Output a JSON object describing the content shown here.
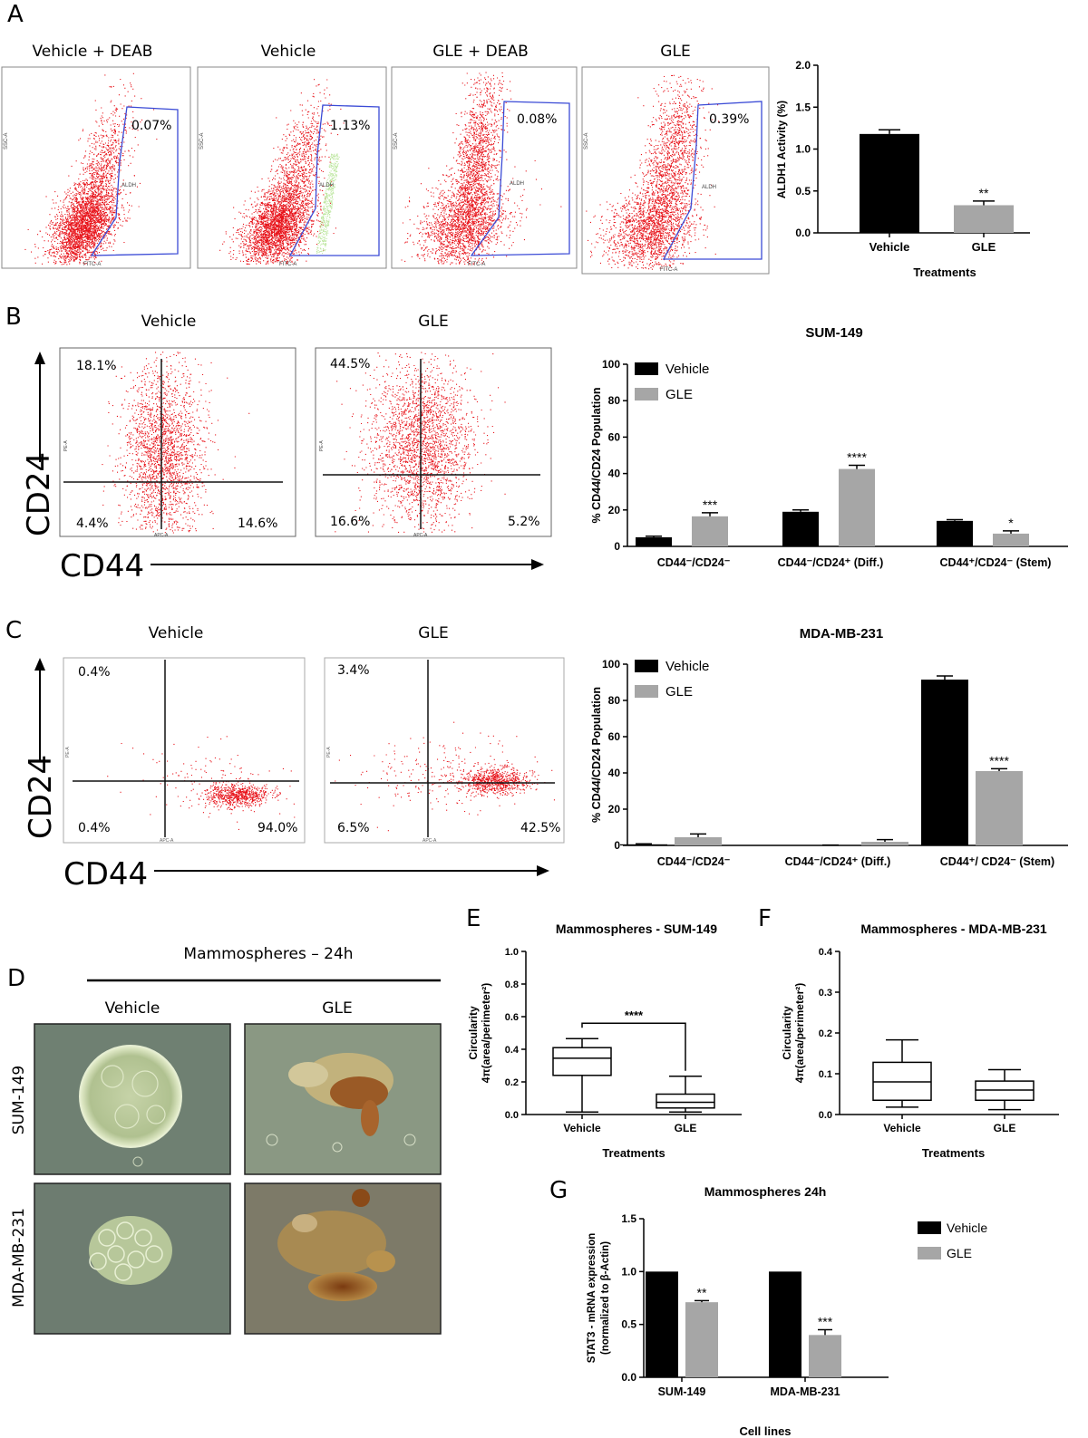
{
  "colors": {
    "vehicle": "#000000",
    "gle": "#a6a6a6",
    "dots": "#e8141b",
    "gate": "#3b4bd6",
    "gateDot": "#2c3ee0",
    "green": "#b9e59a"
  },
  "panel_letters": {
    "A": "A",
    "B": "B",
    "C": "C",
    "D": "D",
    "E": "E",
    "F": "F",
    "G": "G"
  },
  "panelA": {
    "flow_titles": [
      "Vehicle + DEAB",
      "Vehicle",
      "GLE + DEAB",
      "GLE"
    ],
    "percents": [
      "0.07%",
      "1.13%",
      "0.08%",
      "0.39%"
    ],
    "gate_label": "ALDH",
    "x_axis_label": "FITC-A",
    "y_axis_label": "SSC-A",
    "axis_max": "262144"
  },
  "panelB": {
    "flow_titles": [
      "Vehicle",
      "GLE"
    ],
    "quadrants": [
      [
        "18.1%",
        "4.4%",
        "14.6%"
      ],
      [
        "44.5%",
        "16.6%",
        "5.2%"
      ]
    ],
    "y_axis_big": "CD24",
    "x_axis_big": "CD44",
    "x_axis_small": "APC-A",
    "y_axis_small": "PE-A",
    "axis_max": "262144"
  },
  "panelC": {
    "flow_titles": [
      "Vehicle",
      "GLE"
    ],
    "quadrants": [
      [
        "0.4%",
        "0.4%",
        "94.0%"
      ],
      [
        "3.4%",
        "6.5%",
        "42.5%"
      ]
    ],
    "y_axis_big": "CD24",
    "x_axis_big": "CD44",
    "x_axis_small": "APC-A",
    "y_axis_small": "PE-A",
    "axis_max": "262144"
  },
  "panelD": {
    "title": "Mammospheres – 24h",
    "columns": [
      "Vehicle",
      "GLE"
    ],
    "rows": [
      "SUM-149",
      "MDA-MB-231"
    ]
  },
  "chart_data": [
    {
      "id": "A",
      "type": "bar",
      "title": "",
      "categories": [
        "Vehicle",
        "GLE"
      ],
      "values": [
        1.18,
        0.33
      ],
      "errors": [
        0.05,
        0.05
      ],
      "annotations": [
        "",
        "**"
      ],
      "xlabel": "Treatments",
      "ylabel": "ALDH1 Activity (%)",
      "ylim": [
        0,
        2.0
      ],
      "yticks": [
        "0.0",
        "0.5",
        "1.0",
        "1.5",
        "2.0"
      ]
    },
    {
      "id": "B",
      "type": "bar",
      "title": "SUM-149",
      "categories": [
        "CD44⁻/CD24⁻",
        "CD44⁻/CD24⁺ (Diff.)",
        "CD44⁺/CD24⁻ (Stem)"
      ],
      "series": [
        {
          "name": "Vehicle",
          "values": [
            5,
            19,
            14
          ],
          "errors": [
            0.6,
            1.0,
            0.7
          ]
        },
        {
          "name": "GLE",
          "values": [
            16.5,
            42.5,
            7
          ],
          "errors": [
            2.0,
            2.0,
            1.5
          ]
        }
      ],
      "annotations": [
        "***",
        "****",
        "*"
      ],
      "ylabel": "% CD44/CD24 Population",
      "ylim": [
        0,
        100
      ],
      "yticks": [
        "0",
        "20",
        "40",
        "60",
        "80",
        "100"
      ]
    },
    {
      "id": "C",
      "type": "bar",
      "title": "MDA-MB-231",
      "categories": [
        "CD44⁻/CD24⁻",
        "CD44⁻/CD24⁺ (Diff.)",
        "CD44⁺/ CD24⁻ (Stem)"
      ],
      "series": [
        {
          "name": "Vehicle",
          "values": [
            0.6,
            0.1,
            91.5
          ],
          "errors": [
            0.3,
            0.1,
            2.0
          ]
        },
        {
          "name": "GLE",
          "values": [
            4.5,
            2.0,
            41
          ],
          "errors": [
            1.8,
            1.2,
            1.3
          ]
        }
      ],
      "annotations": [
        "",
        "",
        "****"
      ],
      "ylabel": "% CD44/CD24 Population",
      "ylim": [
        0,
        100
      ],
      "yticks": [
        "0",
        "20",
        "40",
        "60",
        "80",
        "100"
      ]
    },
    {
      "id": "E",
      "type": "box",
      "title": "Mammospheres - SUM-149",
      "categories": [
        "Vehicle",
        "GLE"
      ],
      "boxes": [
        {
          "min": 0.015,
          "q1": 0.24,
          "median": 0.345,
          "q3": 0.41,
          "max": 0.465
        },
        {
          "min": 0.015,
          "q1": 0.04,
          "median": 0.075,
          "q3": 0.125,
          "max": 0.235
        }
      ],
      "annotation": "****",
      "xlabel": "Treatments",
      "ylabel_line1": "Circularity",
      "ylabel_line2": "4π(area/perimeter²)",
      "ylim": [
        0,
        1.0
      ],
      "yticks": [
        "0.0",
        "0.2",
        "0.4",
        "0.6",
        "0.8",
        "1.0"
      ]
    },
    {
      "id": "F",
      "type": "box",
      "title": "Mammospheres - MDA-MB-231",
      "categories": [
        "Vehicle",
        "GLE"
      ],
      "boxes": [
        {
          "min": 0.018,
          "q1": 0.035,
          "median": 0.08,
          "q3": 0.128,
          "max": 0.183
        },
        {
          "min": 0.012,
          "q1": 0.035,
          "median": 0.06,
          "q3": 0.082,
          "max": 0.11
        }
      ],
      "annotation": "",
      "xlabel": "Treatments",
      "ylabel_line1": "Circularity",
      "ylabel_line2": "4π(area/perimeter²)",
      "ylim": [
        0,
        0.4
      ],
      "yticks": [
        "0.0",
        "0.1",
        "0.2",
        "0.3",
        "0.4"
      ]
    },
    {
      "id": "G",
      "type": "bar",
      "title": "Mammospheres 24h",
      "categories": [
        "SUM-149",
        "MDA-MB-231"
      ],
      "series": [
        {
          "name": "Vehicle",
          "values": [
            1.0,
            1.0
          ],
          "errors": [
            0,
            0
          ]
        },
        {
          "name": "GLE",
          "values": [
            0.71,
            0.4
          ],
          "errors": [
            0.015,
            0.05
          ]
        }
      ],
      "annotations": [
        "**",
        "***"
      ],
      "xlabel": "Cell lines",
      "ylabel_line1": "STAT3 - mRNA expression",
      "ylabel_line2": "(normalized to β-Actin)",
      "ylim": [
        0,
        1.5
      ],
      "yticks": [
        "0.0",
        "0.5",
        "1.0",
        "1.5"
      ]
    }
  ]
}
